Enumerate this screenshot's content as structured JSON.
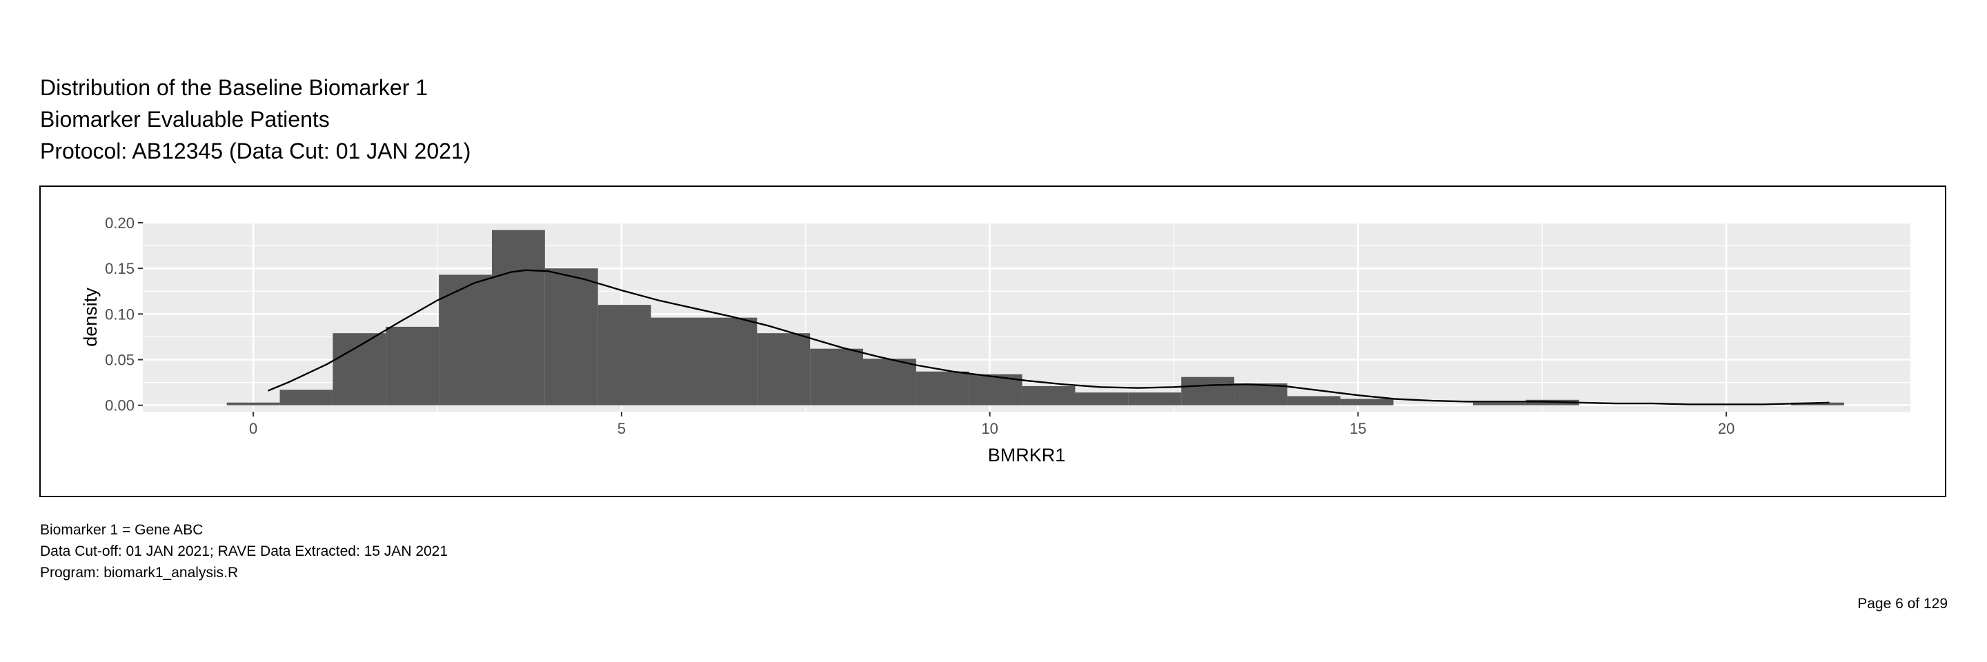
{
  "titles": [
    "Distribution of the Baseline Biomarker 1",
    "Biomarker Evaluable Patients",
    "Protocol: AB12345 (Data Cut: 01 JAN 2021)"
  ],
  "footnotes": [
    "Biomarker 1 = Gene ABC",
    "Data Cut-off: 01 JAN 2021; RAVE Data Extracted: 15 JAN 2021",
    "Program: biomark1_analysis.R"
  ],
  "page_number": "Page 6 of 129",
  "colors": {
    "panel": "#EBEBEB",
    "grid": "#FFFFFF",
    "bar": "#595959",
    "density": "#000000"
  },
  "chart_data": {
    "type": "bar",
    "subtype": "histogram-with-density",
    "xlabel": "BMRKR1",
    "ylabel": "density",
    "xlim": [
      -1.5,
      22.5
    ],
    "ylim": [
      -0.007,
      0.2
    ],
    "x_ticks": [
      0,
      5,
      10,
      15,
      20
    ],
    "x_tick_labels": [
      "0",
      "5",
      "10",
      "15",
      "20"
    ],
    "y_ticks": [
      0,
      0.05,
      0.1,
      0.15,
      0.2
    ],
    "y_tick_labels": [
      "0.00",
      "0.05",
      "0.10",
      "0.15",
      "0.20"
    ],
    "grid": true,
    "bin_width": 0.72,
    "bins": [
      {
        "x0": -0.36,
        "x1": 0.36,
        "density": 0.003
      },
      {
        "x0": 0.36,
        "x1": 1.08,
        "density": 0.017
      },
      {
        "x0": 1.08,
        "x1": 1.8,
        "density": 0.079
      },
      {
        "x0": 1.8,
        "x1": 2.52,
        "density": 0.086
      },
      {
        "x0": 2.52,
        "x1": 3.24,
        "density": 0.143
      },
      {
        "x0": 3.24,
        "x1": 3.96,
        "density": 0.192
      },
      {
        "x0": 3.96,
        "x1": 4.68,
        "density": 0.15
      },
      {
        "x0": 4.68,
        "x1": 5.4,
        "density": 0.11
      },
      {
        "x0": 5.4,
        "x1": 6.12,
        "density": 0.096
      },
      {
        "x0": 6.12,
        "x1": 6.84,
        "density": 0.096
      },
      {
        "x0": 6.84,
        "x1": 7.56,
        "density": 0.079
      },
      {
        "x0": 7.56,
        "x1": 8.28,
        "density": 0.062
      },
      {
        "x0": 8.28,
        "x1": 9.0,
        "density": 0.051
      },
      {
        "x0": 9.0,
        "x1": 9.72,
        "density": 0.037
      },
      {
        "x0": 9.72,
        "x1": 10.44,
        "density": 0.034
      },
      {
        "x0": 10.44,
        "x1": 11.16,
        "density": 0.021
      },
      {
        "x0": 11.16,
        "x1": 11.88,
        "density": 0.014
      },
      {
        "x0": 11.88,
        "x1": 12.6,
        "density": 0.014
      },
      {
        "x0": 12.6,
        "x1": 13.32,
        "density": 0.031
      },
      {
        "x0": 13.32,
        "x1": 14.04,
        "density": 0.024
      },
      {
        "x0": 14.04,
        "x1": 14.76,
        "density": 0.01
      },
      {
        "x0": 14.76,
        "x1": 15.48,
        "density": 0.007
      },
      {
        "x0": 16.56,
        "x1": 17.28,
        "density": 0.003
      },
      {
        "x0": 17.28,
        "x1": 18.0,
        "density": 0.006
      },
      {
        "x0": 20.88,
        "x1": 21.6,
        "density": 0.003
      }
    ],
    "density_curve": {
      "x": [
        0.2,
        0.5,
        1.0,
        1.5,
        2.0,
        2.5,
        3.0,
        3.5,
        3.7,
        4.0,
        4.5,
        5.0,
        5.5,
        6.0,
        6.5,
        7.0,
        7.5,
        8.0,
        8.5,
        9.0,
        9.5,
        10.0,
        10.5,
        11.0,
        11.5,
        12.0,
        12.5,
        13.0,
        13.5,
        14.0,
        14.5,
        15.0,
        15.5,
        16.0,
        16.5,
        17.0,
        17.5,
        18.0,
        18.5,
        19.0,
        19.5,
        20.0,
        20.5,
        21.0,
        21.4
      ],
      "y": [
        0.016,
        0.026,
        0.045,
        0.068,
        0.092,
        0.115,
        0.134,
        0.146,
        0.148,
        0.147,
        0.138,
        0.126,
        0.115,
        0.106,
        0.097,
        0.087,
        0.075,
        0.063,
        0.053,
        0.044,
        0.037,
        0.032,
        0.027,
        0.023,
        0.02,
        0.019,
        0.02,
        0.022,
        0.023,
        0.021,
        0.016,
        0.011,
        0.007,
        0.005,
        0.004,
        0.004,
        0.004,
        0.003,
        0.002,
        0.002,
        0.001,
        0.001,
        0.001,
        0.002,
        0.003
      ]
    }
  }
}
